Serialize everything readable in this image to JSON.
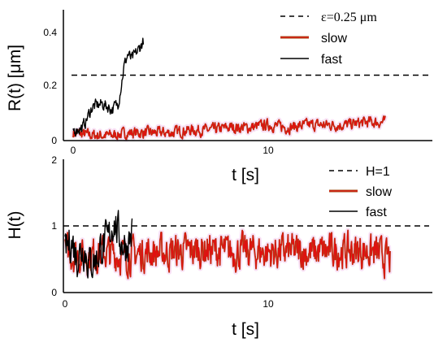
{
  "chart_data": [
    {
      "type": "line",
      "ylabel": "R(t) [μm]",
      "xlabel": "t [s]",
      "xlim": [
        0,
        18
      ],
      "ylim": [
        0,
        0.5
      ],
      "xticks": [
        "0",
        "10"
      ],
      "yticks": [
        "0",
        "0.2",
        "0.4"
      ],
      "legend_position": "top-right",
      "reference_line": {
        "label": "ε=0.25 μm",
        "value": 0.25,
        "style": "dashed",
        "color": "#000000"
      },
      "series": [
        {
          "name": "slow",
          "color": "#e01010",
          "outline_color": "#a0521a",
          "x": [
            0,
            1,
            2,
            3,
            4,
            5,
            6,
            7,
            8,
            9,
            10,
            11,
            12,
            13,
            14,
            15,
            16
          ],
          "y": [
            0.03,
            0.02,
            0.02,
            0.03,
            0.03,
            0.03,
            0.04,
            0.04,
            0.05,
            0.05,
            0.06,
            0.05,
            0.06,
            0.06,
            0.06,
            0.07,
            0.07
          ],
          "noise": 0.018
        },
        {
          "name": "fast",
          "color": "#000000",
          "x": [
            0,
            0.5,
            0.8,
            1.0,
            1.5,
            2.0,
            2.3,
            2.5,
            2.6,
            2.8,
            3.0,
            3.3,
            3.6
          ],
          "y": [
            0.04,
            0.05,
            0.1,
            0.13,
            0.14,
            0.12,
            0.14,
            0.23,
            0.28,
            0.33,
            0.31,
            0.34,
            0.38
          ],
          "noise": 0.02
        }
      ]
    },
    {
      "type": "line",
      "ylabel": "H(t)",
      "xlabel": "t [s]",
      "xlim": [
        0,
        18
      ],
      "ylim": [
        0,
        2
      ],
      "xticks": [
        "0",
        "10"
      ],
      "yticks": [
        "0",
        "1",
        "2"
      ],
      "legend_position": "top-right",
      "reference_line": {
        "label": "H=1",
        "value": 1,
        "style": "dashed",
        "color": "#000000"
      },
      "series": [
        {
          "name": "slow",
          "color": "#e01010",
          "outline_color": "#a0521a",
          "x": [
            0,
            1,
            2,
            3,
            4,
            5,
            6,
            7,
            8,
            9,
            10,
            11,
            12,
            13,
            14,
            15,
            16
          ],
          "y": [
            0.6,
            0.55,
            0.6,
            0.55,
            0.6,
            0.6,
            0.62,
            0.65,
            0.6,
            0.62,
            0.6,
            0.62,
            0.6,
            0.62,
            0.62,
            0.62,
            0.5
          ],
          "noise": 0.22
        },
        {
          "name": "fast",
          "color": "#000000",
          "x": [
            0,
            0.3,
            0.6,
            0.9,
            1.2,
            1.5,
            1.8,
            2.1,
            2.4,
            2.7,
            3.0,
            3.3
          ],
          "y": [
            0.6,
            0.8,
            0.55,
            0.7,
            0.45,
            0.5,
            0.7,
            0.75,
            1.1,
            0.8,
            0.7,
            0.9
          ],
          "noise": 0.25
        }
      ]
    }
  ]
}
